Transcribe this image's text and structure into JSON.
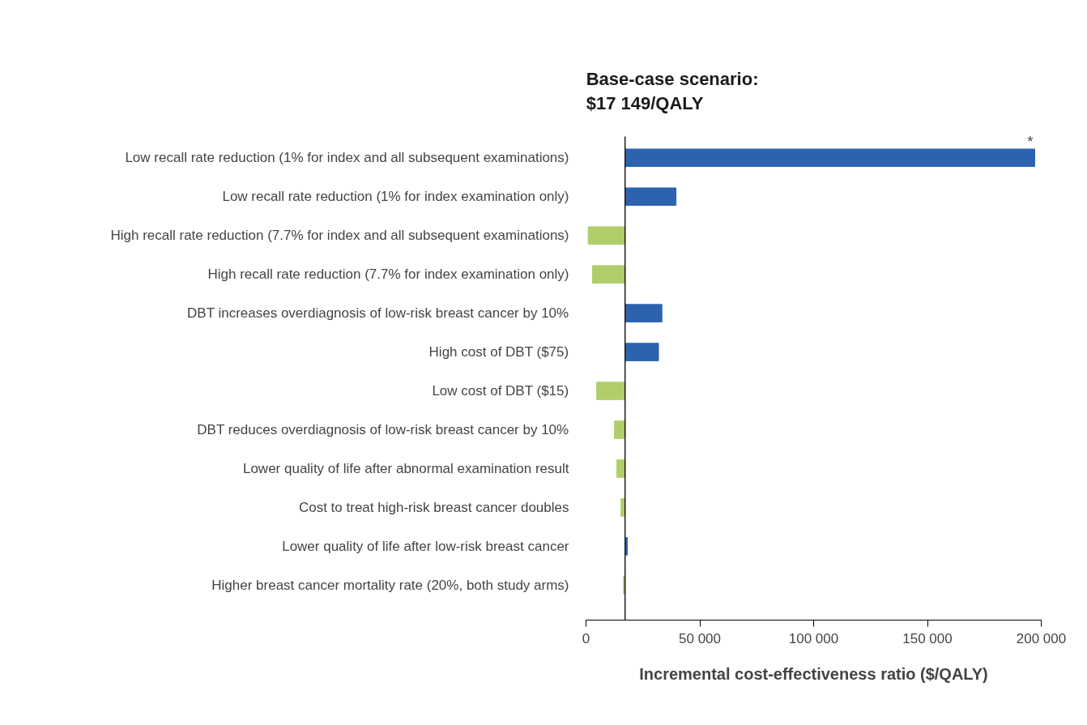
{
  "chart_data": {
    "type": "bar",
    "orientation": "horizontal",
    "categories": [
      "Low recall rate reduction (1% for index and all subsequent examinations)",
      "Low recall rate reduction (1% for index examination only)",
      "High recall rate reduction (7.7% for index and all subsequent examinations)",
      "High recall rate reduction (7.7% for index examination only)",
      "DBT increases overdiagnosis of low-risk breast cancer by 10%",
      "High cost of DBT ($75)",
      "Low cost of DBT ($15)",
      "DBT reduces overdiagnosis of low-risk breast cancer by 10%",
      "Lower quality of life after abnormal examination result",
      "Cost to treat high-risk breast cancer doubles",
      "Lower quality of life after low-risk breast cancer",
      "Higher breast cancer mortality rate (20%, both study arms)"
    ],
    "values": [
      180000,
      22400,
      -16200,
      -14300,
      16200,
      14700,
      -12500,
      -4700,
      -3600,
      -1800,
      1000,
      -700
    ],
    "base": [
      17149,
      17149,
      17149,
      17149,
      17149,
      17149,
      17149,
      17149,
      17149,
      17149,
      17149,
      17149
    ],
    "colors": [
      "#2d63ae",
      "#2d63ae",
      "#b0cf6b",
      "#b0cf6b",
      "#2d63ae",
      "#2d63ae",
      "#b0cf6b",
      "#b0cf6b",
      "#b0cf6b",
      "#b0cf6b",
      "#2d63ae",
      "#b0cf6b"
    ],
    "xlabel": "Incremental cost-effectiveness ratio ($/QALY)",
    "xlim": [
      0,
      200000
    ],
    "xticks": [
      {
        "value": 0,
        "label": "0"
      },
      {
        "value": 50000,
        "label": "50 000"
      },
      {
        "value": 100000,
        "label": "100 000"
      },
      {
        "value": 150000,
        "label": "150 000"
      },
      {
        "value": 200000,
        "label": "200 000"
      }
    ],
    "ref_lines": [
      {
        "axis": "x",
        "value": 17149,
        "label": "Base-case scenario:\n$17 149/QALY",
        "color": "#1a1a1a"
      }
    ],
    "annotations": [
      {
        "text": "*",
        "x": 197149,
        "y": "Low recall rate reduction (1% for index and all subsequent examinations)"
      }
    ],
    "grid": false
  }
}
